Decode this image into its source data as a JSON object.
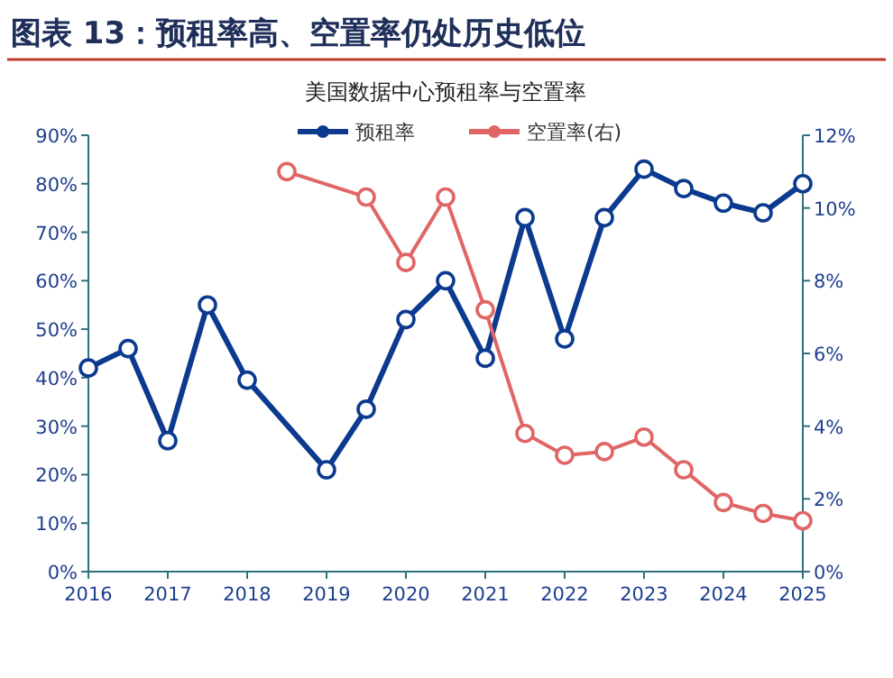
{
  "chart_data": {
    "type": "line",
    "title": "图表 13：预租率高、空置率仍处历史低位",
    "subtitle": "美国数据中心预租率与空置率",
    "xlim": [
      2016,
      2025
    ],
    "xticks": [
      2016,
      2017,
      2018,
      2019,
      2020,
      2021,
      2022,
      2023,
      2024,
      2025
    ],
    "ylim": [
      0,
      90
    ],
    "yticks": [
      {
        "value": 0,
        "label": "0%"
      },
      {
        "value": 10,
        "label": "10%"
      },
      {
        "value": 20,
        "label": "20%"
      },
      {
        "value": 30,
        "label": "30%"
      },
      {
        "value": 40,
        "label": "40%"
      },
      {
        "value": 50,
        "label": "50%"
      },
      {
        "value": 60,
        "label": "60%"
      },
      {
        "value": 70,
        "label": "70%"
      },
      {
        "value": 80,
        "label": "80%"
      },
      {
        "value": 90,
        "label": "90%"
      }
    ],
    "y2lim": [
      0,
      12
    ],
    "y2ticks": [
      {
        "value": 0,
        "label": "0%"
      },
      {
        "value": 2,
        "label": "2%"
      },
      {
        "value": 4,
        "label": "4%"
      },
      {
        "value": 6,
        "label": "6%"
      },
      {
        "value": 8,
        "label": "8%"
      },
      {
        "value": 10,
        "label": "10%"
      },
      {
        "value": 12,
        "label": "12%"
      }
    ],
    "legend": "top right",
    "marker": "circle",
    "grid": false,
    "series": [
      {
        "name": "预租率",
        "color": "#0b3a8f",
        "x": [
          2016,
          2016.5,
          2017,
          2017.5,
          2018,
          2019,
          2019.5,
          2020,
          2020.5,
          2021,
          2021.5,
          2022,
          2022.5,
          2023,
          2023.5,
          2024,
          2024.5,
          2025
        ],
        "values": [
          42,
          46,
          27,
          55,
          39.5,
          21,
          33.5,
          52,
          60,
          44,
          73,
          48,
          73,
          83,
          79,
          76,
          74,
          80
        ]
      },
      {
        "name": "空置率(右)",
        "color": "#e06666",
        "axis": "y2",
        "x": [
          2018.5,
          2019.5,
          2020,
          2020.5,
          2021,
          2021.5,
          2022,
          2022.5,
          2023,
          2023.5,
          2024,
          2024.5,
          2025
        ],
        "values": [
          11.0,
          10.3,
          8.5,
          10.3,
          7.2,
          3.8,
          3.2,
          3.3,
          3.7,
          2.8,
          1.9,
          1.6,
          1.4
        ]
      }
    ]
  }
}
